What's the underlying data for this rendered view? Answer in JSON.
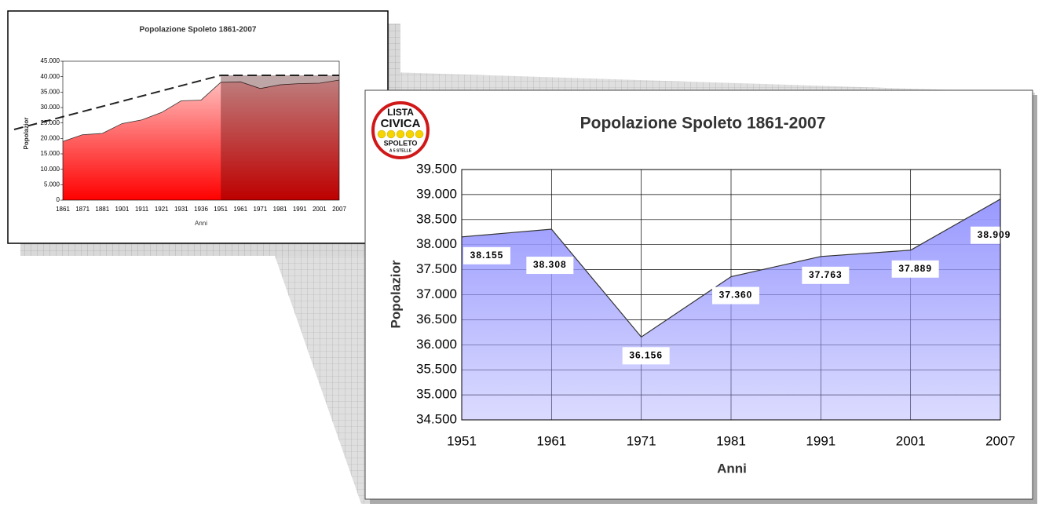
{
  "chart_data": [
    {
      "type": "area",
      "title": "Popolazione Spoleto 1861-2007",
      "xlabel": "Anni",
      "ylabel": "Popolazior",
      "categories": [
        "1861",
        "1871",
        "1881",
        "1901",
        "1911",
        "1921",
        "1931",
        "1936",
        "1951",
        "1961",
        "1971",
        "1981",
        "1991",
        "2001",
        "2007"
      ],
      "series": [
        {
          "name": "Popolazione",
          "color": "#ff0000",
          "values": [
            19000,
            21200,
            21600,
            24800,
            26000,
            28400,
            32200,
            32400,
            38155,
            38308,
            36156,
            37360,
            37763,
            37889,
            38909
          ]
        }
      ],
      "ylim": [
        0,
        45000
      ],
      "yticks": [
        {
          "value": 0,
          "label": "0"
        },
        {
          "value": 5000,
          "label": "5.000"
        },
        {
          "value": 10000,
          "label": "10.000"
        },
        {
          "value": 15000,
          "label": "15.000"
        },
        {
          "value": 20000,
          "label": "20.000"
        },
        {
          "value": 25000,
          "label": "25.000"
        },
        {
          "value": 30000,
          "label": "30.000"
        },
        {
          "value": 35000,
          "label": "35.000"
        },
        {
          "value": 40000,
          "label": "40.000"
        },
        {
          "value": 45000,
          "label": "45.000"
        }
      ],
      "grid": false
    },
    {
      "type": "area",
      "title": "Popolazione Spoleto 1861-2007",
      "xlabel": "Anni",
      "ylabel": "Popolazior",
      "logo_texts": [
        "LISTA",
        "CIVICA",
        "SPOLETO",
        "A 5 STELLE"
      ],
      "categories": [
        "1951",
        "1961",
        "1971",
        "1981",
        "1991",
        "2001",
        "2007"
      ],
      "series": [
        {
          "name": "Popolazione",
          "color": "#9999ff",
          "values": [
            38155,
            38308,
            36156,
            37360,
            37763,
            37889,
            38909
          ],
          "value_labels": [
            "38.155",
            "38.308",
            "36.156",
            "37.360",
            "37.763",
            "37.889",
            "38.909"
          ]
        }
      ],
      "ylim": [
        34500,
        39500
      ],
      "yticks": [
        {
          "value": 34500,
          "label": "34.500"
        },
        {
          "value": 35000,
          "label": "35.000"
        },
        {
          "value": 35500,
          "label": "35.500"
        },
        {
          "value": 36000,
          "label": "36.000"
        },
        {
          "value": 36500,
          "label": "36.500"
        },
        {
          "value": 37000,
          "label": "37.000"
        },
        {
          "value": 37500,
          "label": "37.500"
        },
        {
          "value": 38000,
          "label": "38.000"
        },
        {
          "value": 38500,
          "label": "38.500"
        },
        {
          "value": 39000,
          "label": "39.000"
        },
        {
          "value": 39500,
          "label": "39.500"
        }
      ],
      "grid": true
    }
  ]
}
